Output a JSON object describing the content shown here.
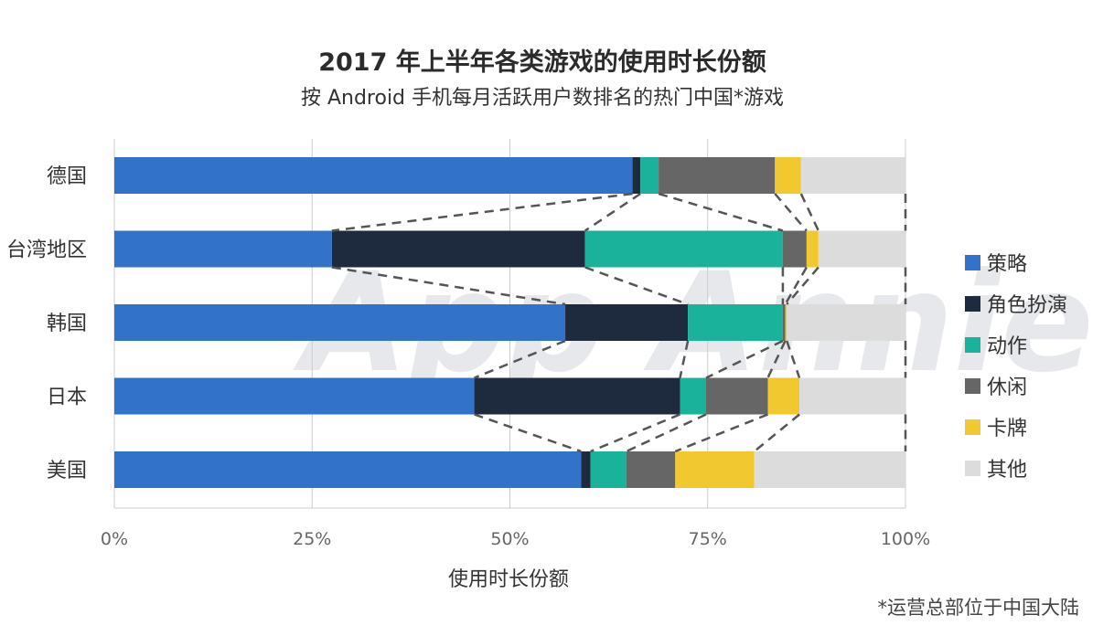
{
  "chart_data": {
    "type": "bar",
    "orientation": "horizontal",
    "stacked": true,
    "title": "2017 年上半年各类游戏的使用时长份额",
    "subtitle": "按 Android 手机每月活跃用户数排名的热门中国*游戏",
    "xlabel": "使用时长份额",
    "ylabel": "",
    "xlim": [
      0,
      100
    ],
    "x_ticks": [
      "0%",
      "25%",
      "50%",
      "75%",
      "100%"
    ],
    "grid": true,
    "legend_position": "right",
    "categories": [
      "德国",
      "台湾地区",
      "韩国",
      "日本",
      "美国"
    ],
    "series": [
      {
        "name": "策略",
        "color": "#3272c9",
        "values": [
          65.5,
          27.5,
          57.0,
          45.5,
          59.0
        ]
      },
      {
        "name": "角色扮演",
        "color": "#1e2b3e",
        "values": [
          1.0,
          32.0,
          15.5,
          26.0,
          1.2
        ]
      },
      {
        "name": "动作",
        "color": "#1ab29a",
        "values": [
          2.3,
          25.0,
          12.0,
          3.3,
          4.5
        ]
      },
      {
        "name": "休闲",
        "color": "#666666",
        "values": [
          14.7,
          3.0,
          0.3,
          7.8,
          6.2
        ]
      },
      {
        "name": "卡牌",
        "color": "#f2c830",
        "values": [
          3.3,
          1.5,
          0.2,
          4.0,
          10.0
        ]
      },
      {
        "name": "其他",
        "color": "#dcdcdc",
        "values": [
          13.2,
          11.0,
          15.0,
          13.4,
          19.1
        ]
      }
    ],
    "footnote": "*运营总部位于中国大陆",
    "watermark": "App Annie"
  }
}
